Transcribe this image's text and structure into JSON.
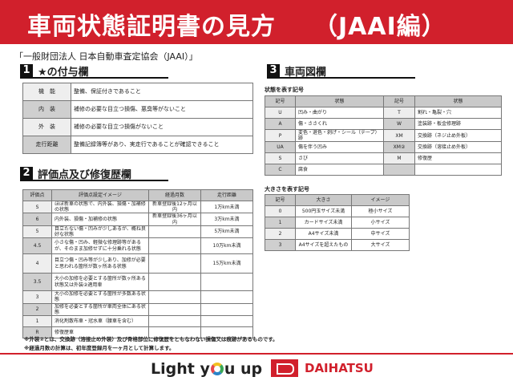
{
  "title": "車両状態証明書の見方　　（JAAI編）",
  "subtitle": "「一般財団法人 日本自動車査定協会（JAAI）」",
  "section1": {
    "num": "1",
    "title": "★の付与欄",
    "rows": [
      [
        "機　能",
        "整備、保証付きであること"
      ],
      [
        "内　装",
        "補修の必要な目立つ損傷、悪臭等がないこと"
      ],
      [
        "外　装",
        "補修の必要な目立つ損傷がないこと"
      ],
      [
        "走行距離",
        "整備記録簿等があり、実走行であることが確認できること"
      ]
    ]
  },
  "section2": {
    "num": "2",
    "title": "評価点及び修復歴欄",
    "headers": [
      "評価点",
      "評価点設定イメージ",
      "経過月数",
      "走行距離"
    ],
    "rows": [
      [
        "S",
        "ほぼ新車の状態で、内外装、損傷・加補修の状態",
        "新車登録後12ヶ月以内",
        "1万km未満"
      ],
      [
        "6",
        "内外装、損傷・加補修の状態",
        "新車登録後36ヶ月以内",
        "3万km未満"
      ],
      [
        "5",
        "目立たない傷・凹みが少しあるが、概ね良好な状態",
        "",
        "5万km未満"
      ],
      [
        "4.5",
        "小さな傷・凹み、軽微な修理跡等があるが、そのまま加修せずに十分乗れる状態",
        "",
        "10万km未満"
      ],
      [
        "4",
        "目立つ傷・凹み等が少しあり、加修が必要と思われる箇所が数ヶ所ある状態",
        "",
        "15万km未満"
      ],
      [
        "3.5",
        "大小の加修を必要とする箇所が数ヶ所ある状態又は外装②適用車",
        "",
        ""
      ],
      [
        "3",
        "大小の加修を必要とする箇所が多数ある状態",
        "",
        ""
      ],
      [
        "2",
        "加修を必要とする箇所が車両全体にある状態",
        "",
        ""
      ],
      [
        "1",
        "消化剤散布車・冠水車（腰車を含む）",
        "",
        ""
      ],
      [
        "R",
        "修復歴車",
        "",
        ""
      ]
    ]
  },
  "notes": [
    "※外装②とは、交換跡（溶接止め外装）及び骨格部位に修復歴をともなわない損傷又は痕跡があるものです。",
    "※経過月数の計算は、初年度登録月を一ヶ月として計算します。"
  ],
  "section3": {
    "num": "3",
    "title": "車両図欄",
    "symbols_label": "状態を表す記号",
    "symbols_headers": [
      "記号",
      "状態",
      "記号",
      "状態"
    ],
    "symbols": [
      [
        "U",
        "凹み・曲がり",
        "T",
        "割れ・亀裂・穴"
      ],
      [
        "A",
        "傷・ささくれ",
        "W",
        "塗装跡・板金修理跡"
      ],
      [
        "P",
        "変色・退色・剥げ・シール（テープ）跡",
        "XM",
        "交換跡（ネジ止め外板）"
      ],
      [
        "UA",
        "傷を伴う凹み",
        "XM②",
        "交換跡（溶接止め外板）"
      ],
      [
        "S",
        "さび",
        "M",
        "修復歴"
      ],
      [
        "C",
        "腐食",
        "",
        ""
      ]
    ],
    "size_label": "大きさを表す記号",
    "size_headers": [
      "記号",
      "大きさ",
      "イメージ"
    ],
    "sizes": [
      [
        "0",
        "500円玉サイズ未満",
        "極小サイズ"
      ],
      [
        "1",
        "カードサイズ未満",
        "小サイズ"
      ],
      [
        "2",
        "A4サイズ未満",
        "中サイズ"
      ],
      [
        "3",
        "A4サイズを超えたもの",
        "大サイズ"
      ]
    ]
  },
  "footer": {
    "slogan_a": "Light y",
    "slogan_b": "u up",
    "brand": "DAIHATSU"
  },
  "colors": {
    "accent": "#d1202c"
  }
}
